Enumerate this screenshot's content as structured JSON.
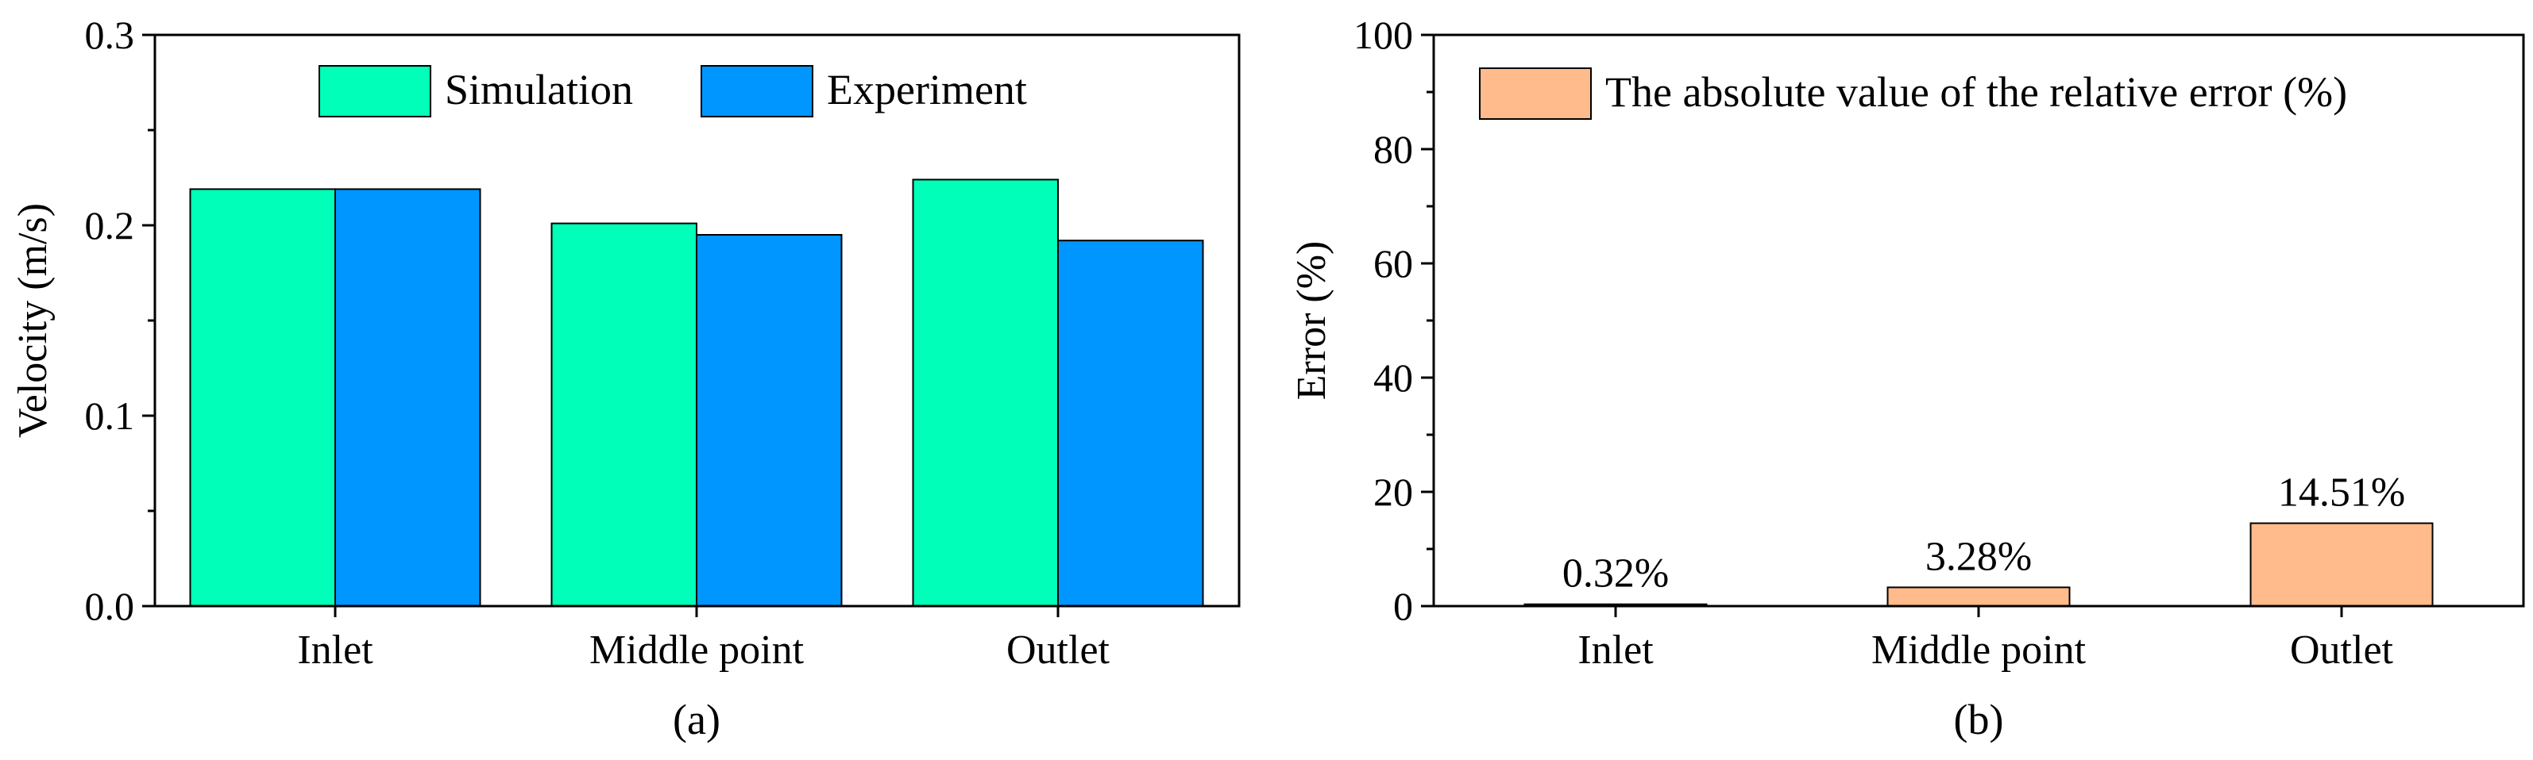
{
  "chart_data": [
    {
      "id": "a",
      "type": "bar",
      "caption": "(a)",
      "categories": [
        "Inlet",
        "Middle point",
        "Outlet"
      ],
      "series": [
        {
          "name": "Simulation",
          "color": "#00FFB8",
          "values": [
            0.219,
            0.201,
            0.224
          ]
        },
        {
          "name": "Experiment",
          "color": "#0096FF",
          "values": [
            0.219,
            0.195,
            0.192
          ]
        }
      ],
      "xlabel": "",
      "ylabel": "Velocity (m/s)",
      "ylim": [
        0,
        0.3
      ],
      "yticks": [
        "0.0",
        "0.1",
        "0.2",
        "0.3"
      ],
      "legend": "top"
    },
    {
      "id": "b",
      "type": "bar",
      "caption": "(b)",
      "categories": [
        "Inlet",
        "Middle point",
        "Outlet"
      ],
      "series": [
        {
          "name": "The absolute value of the relative error (%)",
          "color": "#FFBB8C",
          "values": [
            0.32,
            3.28,
            14.51
          ]
        }
      ],
      "data_labels": [
        "0.32%",
        "3.28%",
        "14.51%"
      ],
      "xlabel": "",
      "ylabel": "Error (%)",
      "ylim": [
        0,
        100
      ],
      "yticks": [
        "0",
        "20",
        "40",
        "60",
        "80",
        "100"
      ],
      "legend": "top-right"
    }
  ]
}
